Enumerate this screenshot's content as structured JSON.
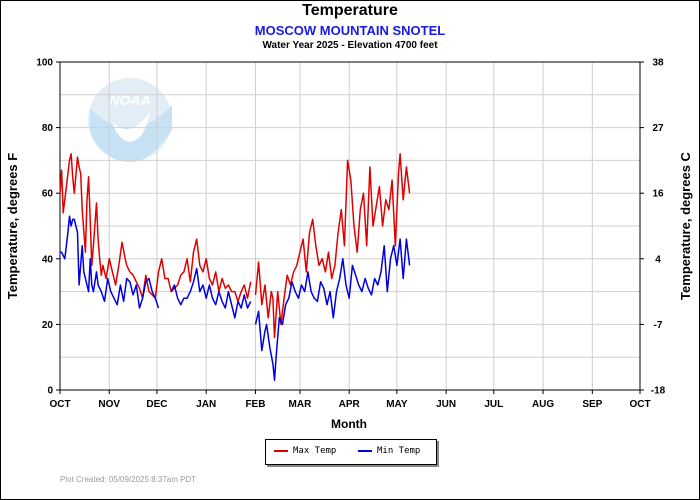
{
  "chart_data": {
    "type": "line",
    "title": "Temperature",
    "subtitle": "MOSCOW MOUNTAIN SNOTEL",
    "subtitle2": "Water Year 2025 -  Elevation 4700 feet",
    "xlabel": "Month",
    "ylabel_left": "Temperature, degrees F",
    "ylabel_right": "Temperature, degrees C",
    "ylim": [
      0,
      100
    ],
    "yticks_left": [
      "0",
      "20",
      "40",
      "60",
      "80",
      "100"
    ],
    "yticks_right": [
      "-18",
      "-7",
      "4",
      "16",
      "27",
      "38"
    ],
    "month_ticks": [
      "OCT",
      "NOV",
      "DEC",
      "JAN",
      "FEB",
      "MAR",
      "APR",
      "MAY",
      "JUN",
      "JUL",
      "AUG",
      "SEP",
      "OCT"
    ],
    "x_start": "2024-10-01",
    "x_end": "2025-10-01",
    "grid": true,
    "legend_position": "bottom-center",
    "series": [
      {
        "name": "Max Temp",
        "color": "#e00000",
        "x": [
          "2024-10-01",
          "2024-10-02",
          "2024-10-03",
          "2024-10-05",
          "2024-10-07",
          "2024-10-08",
          "2024-10-09",
          "2024-10-10",
          "2024-10-12",
          "2024-10-13",
          "2024-10-14",
          "2024-10-15",
          "2024-10-17",
          "2024-10-18",
          "2024-10-19",
          "2024-10-20",
          "2024-10-21",
          "2024-10-22",
          "2024-10-24",
          "2024-10-25",
          "2024-10-26",
          "2024-10-27",
          "2024-10-28",
          "2024-10-30",
          "2024-11-01",
          "2024-11-03",
          "2024-11-05",
          "2024-11-07",
          "2024-11-09",
          "2024-11-11",
          "2024-11-12",
          "2024-11-14",
          "2024-11-16",
          "2024-11-18",
          "2024-11-20",
          "2024-11-22",
          "2024-11-24",
          "2024-11-26",
          "2024-11-28",
          "2024-11-30",
          "2024-12-02",
          "2024-12-04",
          "2024-12-06",
          "2024-12-08",
          "2024-12-10",
          "2024-12-12",
          "2024-12-14",
          "2024-12-16",
          "2024-12-18",
          "2024-12-20",
          "2024-12-22",
          "2024-12-24",
          "2024-12-26",
          "2024-12-28",
          "2024-12-30",
          "2025-01-01",
          "2025-01-03",
          "2025-01-05",
          "2025-01-07",
          "2025-01-09",
          "2025-01-11",
          "2025-01-13",
          "2025-01-15",
          "2025-01-17",
          "2025-01-19",
          "2025-01-21",
          "2025-01-23",
          "2025-01-25",
          "2025-01-27",
          "2025-01-29",
          null,
          "2025-02-01",
          "2025-02-03",
          "2025-02-05",
          "2025-02-07",
          "2025-02-09",
          "2025-02-11",
          "2025-02-12",
          "2025-02-13",
          "2025-02-15",
          "2025-02-17",
          "2025-02-19",
          "2025-02-21",
          "2025-02-23",
          "2025-02-25",
          "2025-02-27",
          "2025-03-01",
          "2025-03-03",
          "2025-03-05",
          "2025-03-07",
          "2025-03-09",
          "2025-03-11",
          "2025-03-13",
          "2025-03-15",
          "2025-03-17",
          "2025-03-19",
          "2025-03-21",
          "2025-03-23",
          "2025-03-25",
          "2025-03-27",
          "2025-03-29",
          "2025-03-31",
          "2025-04-02",
          "2025-04-04",
          "2025-04-06",
          "2025-04-08",
          "2025-04-10",
          "2025-04-12",
          "2025-04-14",
          "2025-04-16",
          "2025-04-18",
          "2025-04-20",
          "2025-04-22",
          "2025-04-24",
          "2025-04-26",
          "2025-04-28",
          "2025-04-30",
          "2025-05-02",
          "2025-05-03",
          "2025-05-05",
          "2025-05-07",
          "2025-05-08",
          "2025-05-09"
        ],
        "values": [
          60,
          67,
          54,
          62,
          70,
          72,
          65,
          60,
          71,
          68,
          66,
          55,
          42,
          58,
          65,
          52,
          38,
          44,
          57,
          46,
          40,
          35,
          38,
          34,
          40,
          36,
          32,
          38,
          45,
          40,
          38,
          36,
          35,
          33,
          31,
          28,
          35,
          30,
          29,
          28,
          36,
          40,
          34,
          34,
          30,
          31,
          32,
          35,
          36,
          40,
          33,
          42,
          46,
          38,
          36,
          40,
          34,
          32,
          36,
          30,
          34,
          31,
          32,
          30,
          30,
          27,
          30,
          32,
          28,
          33,
          null,
          29,
          39,
          26,
          32,
          22,
          30,
          28,
          16,
          30,
          20,
          28,
          35,
          32,
          36,
          38,
          42,
          46,
          36,
          48,
          52,
          44,
          38,
          40,
          36,
          42,
          34,
          38,
          48,
          55,
          44,
          70,
          64,
          50,
          42,
          55,
          60,
          44,
          68,
          50,
          56,
          62,
          50,
          58,
          55,
          64,
          44,
          66,
          72,
          58,
          68,
          64,
          60
        ]
      },
      {
        "name": "Min Temp",
        "color": "#0000e0",
        "x": [
          "2024-10-01",
          "2024-10-02",
          "2024-10-04",
          "2024-10-06",
          "2024-10-07",
          "2024-10-08",
          "2024-10-09",
          "2024-10-10",
          "2024-10-12",
          "2024-10-13",
          "2024-10-15",
          "2024-10-16",
          "2024-10-17",
          "2024-10-19",
          "2024-10-20",
          "2024-10-21",
          "2024-10-22",
          "2024-10-24",
          "2024-10-25",
          "2024-10-27",
          "2024-10-29",
          "2024-10-31",
          "2024-11-02",
          "2024-11-04",
          "2024-11-06",
          "2024-11-08",
          "2024-11-10",
          "2024-11-12",
          "2024-11-14",
          "2024-11-16",
          "2024-11-18",
          "2024-11-20",
          "2024-11-22",
          "2024-11-24",
          "2024-11-26",
          "2024-11-28",
          "2024-11-30",
          "2024-12-02",
          null,
          "2024-12-10",
          "2024-12-12",
          "2024-12-14",
          "2024-12-16",
          "2024-12-18",
          "2024-12-20",
          "2024-12-22",
          "2024-12-24",
          "2024-12-26",
          "2024-12-28",
          "2024-12-30",
          "2025-01-01",
          "2025-01-03",
          "2025-01-05",
          "2025-01-07",
          "2025-01-09",
          "2025-01-11",
          "2025-01-13",
          "2025-01-15",
          "2025-01-17",
          "2025-01-19",
          "2025-01-21",
          "2025-01-23",
          "2025-01-25",
          "2025-01-27",
          "2025-01-29",
          null,
          "2025-02-01",
          "2025-02-03",
          "2025-02-05",
          "2025-02-07",
          "2025-02-08",
          "2025-02-10",
          "2025-02-12",
          "2025-02-13",
          "2025-02-14",
          "2025-02-16",
          "2025-02-18",
          "2025-02-20",
          "2025-02-22",
          "2025-02-24",
          "2025-02-26",
          "2025-02-28",
          "2025-03-02",
          "2025-03-04",
          "2025-03-06",
          "2025-03-08",
          "2025-03-10",
          "2025-03-12",
          "2025-03-14",
          "2025-03-16",
          "2025-03-18",
          "2025-03-20",
          "2025-03-22",
          "2025-03-24",
          "2025-03-26",
          "2025-03-28",
          "2025-03-30",
          "2025-04-01",
          "2025-04-03",
          "2025-04-05",
          "2025-04-07",
          "2025-04-09",
          "2025-04-11",
          "2025-04-13",
          "2025-04-15",
          "2025-04-17",
          "2025-04-19",
          "2025-04-21",
          "2025-04-23",
          "2025-04-25",
          "2025-04-27",
          "2025-04-29",
          "2025-05-01",
          "2025-05-03",
          "2025-05-05",
          "2025-05-07",
          "2025-05-09"
        ],
        "values": [
          42,
          42,
          40,
          48,
          53,
          50,
          52,
          52,
          48,
          32,
          44,
          36,
          34,
          30,
          40,
          32,
          30,
          36,
          32,
          30,
          27,
          34,
          30,
          28,
          26,
          32,
          27,
          34,
          33,
          29,
          32,
          25,
          28,
          33,
          34,
          30,
          28,
          25,
          null,
          30,
          32,
          28,
          26,
          28,
          28,
          30,
          33,
          37,
          30,
          32,
          28,
          32,
          28,
          26,
          30,
          27,
          25,
          30,
          26,
          22,
          27,
          25,
          29,
          25,
          27,
          null,
          20,
          24,
          12,
          18,
          20,
          13,
          8,
          3,
          10,
          22,
          20,
          26,
          28,
          33,
          30,
          28,
          32,
          30,
          36,
          30,
          28,
          27,
          33,
          31,
          26,
          30,
          22,
          30,
          34,
          40,
          32,
          28,
          38,
          35,
          32,
          30,
          34,
          31,
          29,
          34,
          32,
          36,
          44,
          30,
          40,
          44,
          38,
          46,
          34,
          46,
          38
        ]
      }
    ]
  },
  "legend": {
    "max_label": "Max Temp",
    "min_label": "Min Temp"
  },
  "footer": "Plot Created: 05/09/2025 8:37am PDT",
  "logo_text": "NOAA"
}
